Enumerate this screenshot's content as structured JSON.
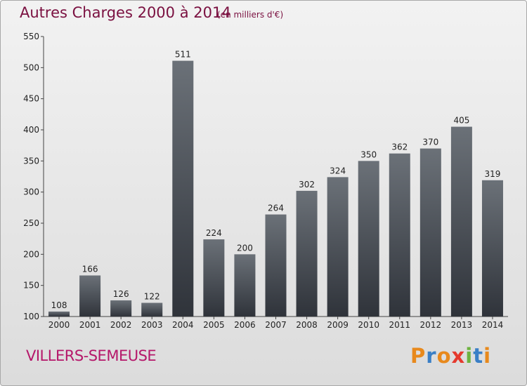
{
  "title": "Autres Charges 2000 à 2014",
  "subtitle": "(en milliers d'€)",
  "commune": "VILLERS-SEMEUSE",
  "logo": {
    "letters": [
      "P",
      "r",
      "o",
      "x",
      "i",
      "t",
      "i"
    ],
    "colors": [
      "#e8891c",
      "#3a7fc6",
      "#e8891c",
      "#e53a2e",
      "#6db33f",
      "#3a7fc6",
      "#e8891c"
    ]
  },
  "colors": {
    "bar_top": "#6b7178",
    "bar_bottom": "#2f333a",
    "text": "#222222",
    "axis": "#444444"
  },
  "chart_data": {
    "type": "bar",
    "categories": [
      "2000",
      "2001",
      "2002",
      "2003",
      "2004",
      "2005",
      "2006",
      "2007",
      "2008",
      "2009",
      "2010",
      "2011",
      "2012",
      "2013",
      "2014"
    ],
    "values": [
      108,
      166,
      126,
      122,
      511,
      224,
      200,
      264,
      302,
      324,
      350,
      362,
      370,
      405,
      319
    ],
    "ylim": [
      100,
      550
    ],
    "yticks": [
      100,
      150,
      200,
      250,
      300,
      350,
      400,
      450,
      500,
      550
    ],
    "grid": false,
    "legend": "none",
    "data_labels": true
  }
}
